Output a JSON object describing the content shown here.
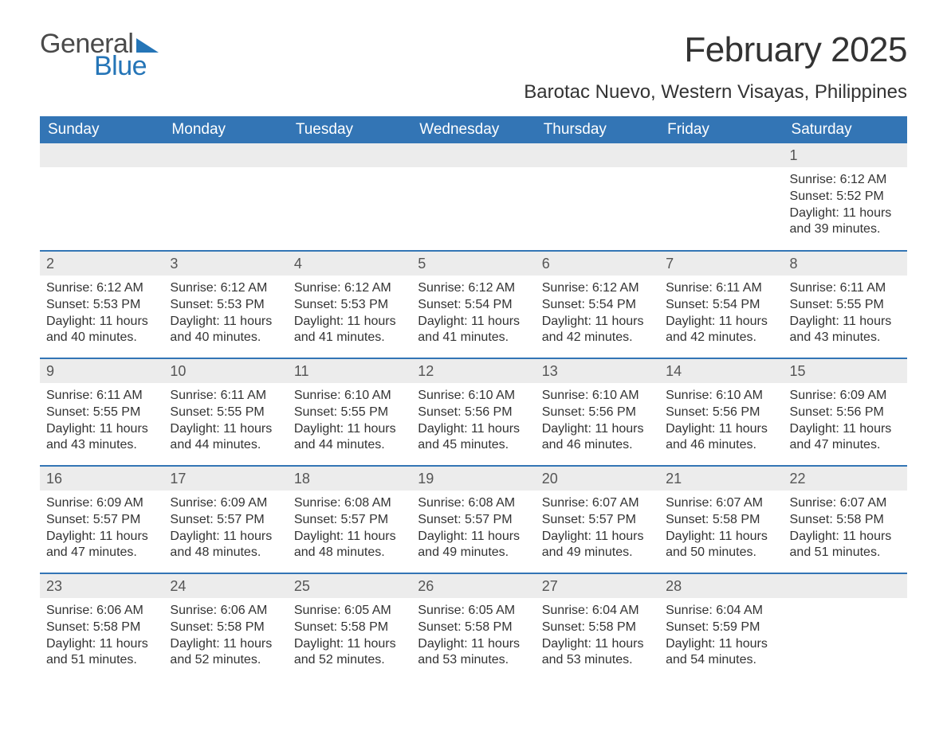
{
  "logo": {
    "text1": "General",
    "text2": "Blue",
    "text1_color": "#4a4a4a",
    "text2_color": "#2575b7",
    "wedge_color": "#2575b7"
  },
  "title": "February 2025",
  "location": "Barotac Nuevo, Western Visayas, Philippines",
  "colors": {
    "header_bg": "#3375b5",
    "header_text": "#ffffff",
    "daynum_bg": "#ececec",
    "row_border": "#3375b5",
    "body_text": "#333333",
    "page_bg": "#ffffff"
  },
  "day_headers": [
    "Sunday",
    "Monday",
    "Tuesday",
    "Wednesday",
    "Thursday",
    "Friday",
    "Saturday"
  ],
  "weeks": [
    [
      null,
      null,
      null,
      null,
      null,
      null,
      {
        "n": "1",
        "sunrise": "Sunrise: 6:12 AM",
        "sunset": "Sunset: 5:52 PM",
        "daylight": "Daylight: 11 hours and 39 minutes."
      }
    ],
    [
      {
        "n": "2",
        "sunrise": "Sunrise: 6:12 AM",
        "sunset": "Sunset: 5:53 PM",
        "daylight": "Daylight: 11 hours and 40 minutes."
      },
      {
        "n": "3",
        "sunrise": "Sunrise: 6:12 AM",
        "sunset": "Sunset: 5:53 PM",
        "daylight": "Daylight: 11 hours and 40 minutes."
      },
      {
        "n": "4",
        "sunrise": "Sunrise: 6:12 AM",
        "sunset": "Sunset: 5:53 PM",
        "daylight": "Daylight: 11 hours and 41 minutes."
      },
      {
        "n": "5",
        "sunrise": "Sunrise: 6:12 AM",
        "sunset": "Sunset: 5:54 PM",
        "daylight": "Daylight: 11 hours and 41 minutes."
      },
      {
        "n": "6",
        "sunrise": "Sunrise: 6:12 AM",
        "sunset": "Sunset: 5:54 PM",
        "daylight": "Daylight: 11 hours and 42 minutes."
      },
      {
        "n": "7",
        "sunrise": "Sunrise: 6:11 AM",
        "sunset": "Sunset: 5:54 PM",
        "daylight": "Daylight: 11 hours and 42 minutes."
      },
      {
        "n": "8",
        "sunrise": "Sunrise: 6:11 AM",
        "sunset": "Sunset: 5:55 PM",
        "daylight": "Daylight: 11 hours and 43 minutes."
      }
    ],
    [
      {
        "n": "9",
        "sunrise": "Sunrise: 6:11 AM",
        "sunset": "Sunset: 5:55 PM",
        "daylight": "Daylight: 11 hours and 43 minutes."
      },
      {
        "n": "10",
        "sunrise": "Sunrise: 6:11 AM",
        "sunset": "Sunset: 5:55 PM",
        "daylight": "Daylight: 11 hours and 44 minutes."
      },
      {
        "n": "11",
        "sunrise": "Sunrise: 6:10 AM",
        "sunset": "Sunset: 5:55 PM",
        "daylight": "Daylight: 11 hours and 44 minutes."
      },
      {
        "n": "12",
        "sunrise": "Sunrise: 6:10 AM",
        "sunset": "Sunset: 5:56 PM",
        "daylight": "Daylight: 11 hours and 45 minutes."
      },
      {
        "n": "13",
        "sunrise": "Sunrise: 6:10 AM",
        "sunset": "Sunset: 5:56 PM",
        "daylight": "Daylight: 11 hours and 46 minutes."
      },
      {
        "n": "14",
        "sunrise": "Sunrise: 6:10 AM",
        "sunset": "Sunset: 5:56 PM",
        "daylight": "Daylight: 11 hours and 46 minutes."
      },
      {
        "n": "15",
        "sunrise": "Sunrise: 6:09 AM",
        "sunset": "Sunset: 5:56 PM",
        "daylight": "Daylight: 11 hours and 47 minutes."
      }
    ],
    [
      {
        "n": "16",
        "sunrise": "Sunrise: 6:09 AM",
        "sunset": "Sunset: 5:57 PM",
        "daylight": "Daylight: 11 hours and 47 minutes."
      },
      {
        "n": "17",
        "sunrise": "Sunrise: 6:09 AM",
        "sunset": "Sunset: 5:57 PM",
        "daylight": "Daylight: 11 hours and 48 minutes."
      },
      {
        "n": "18",
        "sunrise": "Sunrise: 6:08 AM",
        "sunset": "Sunset: 5:57 PM",
        "daylight": "Daylight: 11 hours and 48 minutes."
      },
      {
        "n": "19",
        "sunrise": "Sunrise: 6:08 AM",
        "sunset": "Sunset: 5:57 PM",
        "daylight": "Daylight: 11 hours and 49 minutes."
      },
      {
        "n": "20",
        "sunrise": "Sunrise: 6:07 AM",
        "sunset": "Sunset: 5:57 PM",
        "daylight": "Daylight: 11 hours and 49 minutes."
      },
      {
        "n": "21",
        "sunrise": "Sunrise: 6:07 AM",
        "sunset": "Sunset: 5:58 PM",
        "daylight": "Daylight: 11 hours and 50 minutes."
      },
      {
        "n": "22",
        "sunrise": "Sunrise: 6:07 AM",
        "sunset": "Sunset: 5:58 PM",
        "daylight": "Daylight: 11 hours and 51 minutes."
      }
    ],
    [
      {
        "n": "23",
        "sunrise": "Sunrise: 6:06 AM",
        "sunset": "Sunset: 5:58 PM",
        "daylight": "Daylight: 11 hours and 51 minutes."
      },
      {
        "n": "24",
        "sunrise": "Sunrise: 6:06 AM",
        "sunset": "Sunset: 5:58 PM",
        "daylight": "Daylight: 11 hours and 52 minutes."
      },
      {
        "n": "25",
        "sunrise": "Sunrise: 6:05 AM",
        "sunset": "Sunset: 5:58 PM",
        "daylight": "Daylight: 11 hours and 52 minutes."
      },
      {
        "n": "26",
        "sunrise": "Sunrise: 6:05 AM",
        "sunset": "Sunset: 5:58 PM",
        "daylight": "Daylight: 11 hours and 53 minutes."
      },
      {
        "n": "27",
        "sunrise": "Sunrise: 6:04 AM",
        "sunset": "Sunset: 5:58 PM",
        "daylight": "Daylight: 11 hours and 53 minutes."
      },
      {
        "n": "28",
        "sunrise": "Sunrise: 6:04 AM",
        "sunset": "Sunset: 5:59 PM",
        "daylight": "Daylight: 11 hours and 54 minutes."
      },
      null
    ]
  ]
}
